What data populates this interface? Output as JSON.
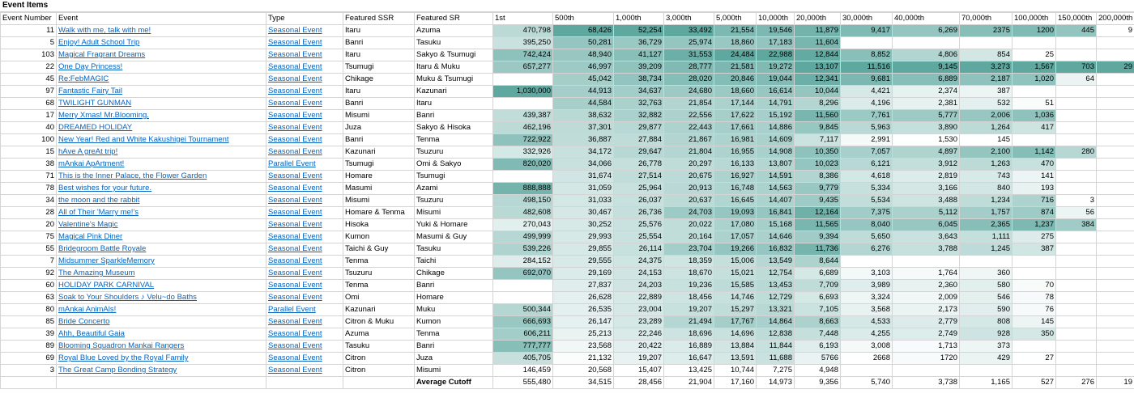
{
  "sheet_title": "Event Items",
  "columns": [
    "Event Number",
    "Event",
    "Type",
    "Featured SSR",
    "Featured SR",
    "1st",
    "500th",
    "1,000th",
    "3,000th",
    "5,000th",
    "10,000th",
    "20,000th",
    "30,000th",
    "40,000th",
    "70,000th",
    "100,000th",
    "150,000th",
    "200,000th"
  ],
  "colors": {
    "link": "#0563c1",
    "grid": "#d4d4d4",
    "scale_low": "#ffffff",
    "scale_high": "#5fa8a0",
    "highlight_blue": "#2e75b6"
  },
  "rows": [
    {
      "num": "11",
      "event": "Walk with me, talk with me!",
      "type": "Seasonal Event",
      "ssr": "Itaru",
      "sr": "Azuma",
      "v": [
        "470,798",
        "68,426",
        "52,254",
        "33,492",
        "21,554",
        "19,546",
        "11,879",
        "9,417",
        "6,269",
        "2375",
        "1200",
        "445",
        "9"
      ]
    },
    {
      "num": "5",
      "event": "Enjoy! Adult School Trip",
      "type": "Seasonal Event",
      "ssr": "Banri",
      "sr": "Tasuku",
      "v": [
        "395,250",
        "50,281",
        "36,729",
        "25,974",
        "18,860",
        "17,183",
        "11,604",
        "",
        "",
        "",
        "",
        "",
        ""
      ]
    },
    {
      "num": "103",
      "event": "Magical Fragrant Dreams",
      "type": "Seasonal Event",
      "ssr": "Itaru",
      "sr": "Sakyo & Tsumugi",
      "v": [
        "742,424",
        "48,940",
        "41,127",
        "31,553",
        "24,484",
        "22,988",
        "12,844",
        "8,852",
        "4,806",
        "854",
        "25",
        "",
        ""
      ]
    },
    {
      "num": "22",
      "event": "One Day Princess!",
      "type": "Seasonal Event",
      "ssr": "Tsumugi",
      "sr": "Itaru & Muku",
      "v": [
        "657,277",
        "46,997",
        "39,209",
        "28,777",
        "21,581",
        "19,272",
        "13,107",
        "11,516",
        "9,145",
        "3,273",
        "1,567",
        "703",
        "29"
      ]
    },
    {
      "num": "45",
      "event": "Re:FebMAGIC",
      "type": "Seasonal Event",
      "ssr": "Chikage",
      "sr": "Muku & Tsumugi",
      "v": [
        "",
        "45,042",
        "38,734",
        "28,020",
        "20,846",
        "19,044",
        "12,341",
        "9,681",
        "6,889",
        "2,187",
        "1,020",
        "64",
        ""
      ]
    },
    {
      "num": "97",
      "event": "Fantastic Fairy Tail",
      "type": "Seasonal Event",
      "ssr": "Itaru",
      "sr": "Kazunari",
      "v": [
        "1,030,000",
        "44,913",
        "34,637",
        "24,680",
        "18,660",
        "16,614",
        "10,044",
        "4,421",
        "2,374",
        "387",
        "",
        "",
        ""
      ]
    },
    {
      "num": "68",
      "event": "TWILIGHT GUNMAN",
      "type": "Seasonal Event",
      "ssr": "Banri",
      "sr": "Itaru",
      "v": [
        "",
        "44,584",
        "32,763",
        "21,854",
        "17,144",
        "14,791",
        "8,296",
        "4,196",
        "2,381",
        "532",
        "51",
        "",
        ""
      ]
    },
    {
      "num": "17",
      "event": "Merry Xmas! Mr.Blooming.",
      "type": "Seasonal Event",
      "ssr": "Misumi",
      "sr": "Banri",
      "v": [
        "439,387",
        "38,632",
        "32,882",
        "22,556",
        "17,622",
        "15,192",
        "11,560",
        "7,761",
        "5,777",
        "2,006",
        "1,036",
        "",
        ""
      ]
    },
    {
      "num": "40",
      "event": "DREAMED HOLIDAY",
      "type": "Seasonal Event",
      "ssr": "Juza",
      "sr": "Sakyo & Hisoka",
      "v": [
        "462,196",
        "37,301",
        "29,877",
        "22,443",
        "17,661",
        "14,886",
        "9,845",
        "5,963",
        "3,890",
        "1,264",
        "417",
        "",
        ""
      ]
    },
    {
      "num": "100",
      "event": "New Year! Red and White Kakushigei Tournament",
      "type": "Seasonal Event",
      "ssr": "Banri",
      "sr": "Tenma",
      "v": [
        "722,922",
        "36,887",
        "27,884",
        "21,867",
        "16,981",
        "14,609",
        "7,117",
        "2,991",
        "1,530",
        "145",
        "",
        "",
        ""
      ]
    },
    {
      "num": "15",
      "event": "hAve A greAt trip!",
      "type": "Seasonal Event",
      "ssr": "Kazunari",
      "sr": "Tsuzuru",
      "v": [
        "332,926",
        "34,172",
        "29,647",
        "21,804",
        "16,955",
        "14,908",
        "10,350",
        "7,057",
        "4,897",
        "2,100",
        "1,142",
        "280",
        ""
      ]
    },
    {
      "num": "38",
      "event": "mAnkai ApArtment!",
      "type": "Parallel Event",
      "ssr": "Tsumugi",
      "sr": "Omi & Sakyo",
      "v": [
        "820,020",
        "34,066",
        "26,778",
        "20,297",
        "16,133",
        "13,807",
        "10,023",
        "6,121",
        "3,912",
        "1,263",
        "470",
        "",
        ""
      ]
    },
    {
      "num": "71",
      "event": "This is the Inner Palace, the Flower Garden",
      "type": "Seasonal Event",
      "ssr": "Homare",
      "sr": "Tsumugi",
      "v": [
        "",
        "31,674",
        "27,514",
        "20,675",
        "16,927",
        "14,591",
        "8,386",
        "4,618",
        "2,819",
        "743",
        "141",
        "",
        ""
      ]
    },
    {
      "num": "78",
      "event": "Best wishes for your future.",
      "type": "Seasonal Event",
      "ssr": "Masumi",
      "sr": "Azami",
      "v": [
        "888,888",
        "31,059",
        "25,964",
        "20,913",
        "16,748",
        "14,563",
        "9,779",
        "5,334",
        "3,166",
        "840",
        "193",
        "",
        ""
      ]
    },
    {
      "num": "34",
      "event": "the moon and the rabbit",
      "type": "Seasonal Event",
      "ssr": "Misumi",
      "sr": "Tsuzuru",
      "v": [
        "498,150",
        "31,033",
        "26,037",
        "20,637",
        "16,645",
        "14,407",
        "9,435",
        "5,534",
        "3,488",
        "1,234",
        "716",
        "3",
        ""
      ]
    },
    {
      "num": "28",
      "event": "All of Their 'Marry me!'s",
      "type": "Seasonal Event",
      "ssr": "Homare & Tenma",
      "sr": "Misumi",
      "v": [
        "482,608",
        "30,467",
        "26,736",
        "24,703",
        "19,093",
        "16,841",
        "12,164",
        "7,375",
        "5,112",
        "1,757",
        "874",
        "56",
        ""
      ]
    },
    {
      "num": "20",
      "event": "Valentine's Magic",
      "type": "Seasonal Event",
      "ssr": "Hisoka",
      "sr": "Yuki & Homare",
      "v": [
        "270,043",
        "30,252",
        "25,576",
        "20,022",
        "17,080",
        "15,168",
        "11,565",
        "8,040",
        "6,045",
        "2,365",
        "1,237",
        "384",
        ""
      ]
    },
    {
      "num": "75",
      "event": "Magical Pink Diner",
      "type": "Seasonal Event",
      "ssr": "Kumon",
      "sr": "Masumi & Guy",
      "v": [
        "499,999",
        "29,993",
        "25,554",
        "20,164",
        "17,057",
        "14,646",
        "9,394",
        "5,650",
        "3,643",
        "1,111",
        "275",
        "",
        ""
      ]
    },
    {
      "num": "55",
      "event": "Bridegroom Battle Royale",
      "type": "Seasonal Event",
      "ssr": "Taichi & Guy",
      "sr": "Tasuku",
      "v": [
        "539,226",
        "29,855",
        "26,114",
        "23,704",
        "19,266",
        "16,832",
        "11,736",
        "6,276",
        "3,788",
        "1,245",
        "387",
        "",
        ""
      ]
    },
    {
      "num": "7",
      "event": "Midsummer SparkleMemory",
      "type": "Seasonal Event",
      "ssr": "Tenma",
      "sr": "Taichi",
      "v": [
        "284,152",
        "29,555",
        "24,375",
        "18,359",
        "15,006",
        "13,549",
        "8,644",
        "",
        "",
        "",
        "",
        "",
        ""
      ]
    },
    {
      "num": "92",
      "event": "The Amazing Museum",
      "type": "Seasonal Event",
      "ssr": "Tsuzuru",
      "sr": "Chikage",
      "v": [
        "692,070",
        "29,169",
        "24,153",
        "18,670",
        "15,021",
        "12,754",
        "6,689",
        "3,103",
        "1,764",
        "360",
        "",
        "",
        ""
      ]
    },
    {
      "num": "60",
      "event": "HOLIDAY PARK CARNIVAL",
      "type": "Seasonal Event",
      "ssr": "Tenma",
      "sr": "Banri",
      "v": [
        "",
        "27,837",
        "24,203",
        "19,236",
        "15,585",
        "13,453",
        "7,709",
        "3,989",
        "2,360",
        "580",
        "70",
        "",
        ""
      ]
    },
    {
      "num": "63",
      "event": "Soak to Your Shoulders ♪ Velu~do Baths",
      "type": "Seasonal Event",
      "ssr": "Omi",
      "sr": "Homare",
      "v": [
        "",
        "26,628",
        "22,889",
        "18,456",
        "14,746",
        "12,729",
        "6,693",
        "3,324",
        "2,009",
        "546",
        "78",
        "",
        ""
      ]
    },
    {
      "num": "80",
      "event": "mAnkai AnimAls!",
      "type": "Parallel Event",
      "ssr": "Kazunari",
      "sr": "Muku",
      "v": [
        "500,344",
        "26,535",
        "23,004",
        "19,207",
        "15,297",
        "13,321",
        "7,105",
        "3,568",
        "2,173",
        "590",
        "76",
        "",
        ""
      ]
    },
    {
      "num": "85",
      "event": "Bride Concerto",
      "type": "Seasonal Event",
      "ssr": "Citron & Muku",
      "sr": "Kumon",
      "v": [
        "666,693",
        "26,147",
        "23,289",
        "21,494",
        "17,767",
        "14,864",
        "8,663",
        "4,533",
        "2,779",
        "808",
        "145",
        "",
        ""
      ]
    },
    {
      "num": "39",
      "event": "Ahh, Beautiful Gaia",
      "type": "Seasonal Event",
      "ssr": "Azuma",
      "sr": "Tenma",
      "v": [
        "606,211",
        "25,213",
        "22,246",
        "18,696",
        "14,696",
        "12,838",
        "7,448",
        "4,255",
        "2,749",
        "928",
        "350",
        "",
        ""
      ]
    },
    {
      "num": "89",
      "event": "Blooming Squadron Mankai Rangers",
      "type": "Seasonal Event",
      "ssr": "Tasuku",
      "sr": "Banri",
      "v": [
        "777,777",
        "23,568",
        "20,422",
        "16,889",
        "13,884",
        "11,844",
        "6,193",
        "3,008",
        "1,713",
        "373",
        "",
        "",
        ""
      ]
    },
    {
      "num": "69",
      "event": "Royal Blue Loved by the Royal Family",
      "type": "Seasonal Event",
      "ssr": "Citron",
      "sr": "Juza",
      "v": [
        "405,705",
        "21,132",
        "19,207",
        "16,647",
        "13,591",
        "11,688",
        "5766",
        "2668",
        "1720",
        "429",
        "27",
        "",
        ""
      ]
    },
    {
      "num": "3",
      "event": "The Great Camp Bonding Strategy",
      "type": "Seasonal Event",
      "ssr": "Citron",
      "sr": "Misumi",
      "v": [
        "146,459",
        "20,568",
        "15,407",
        "13,425",
        "10,744",
        "7,275",
        "4,948",
        "",
        "",
        "",
        "",
        "",
        ""
      ]
    }
  ],
  "average": {
    "label": "Average Cutoff",
    "v": [
      "555,480",
      "34,515",
      "28,456",
      "21,904",
      "17,160",
      "14,973",
      "9,356",
      "5,740",
      "3,738",
      "1,165",
      "527",
      "276",
      "19"
    ]
  }
}
